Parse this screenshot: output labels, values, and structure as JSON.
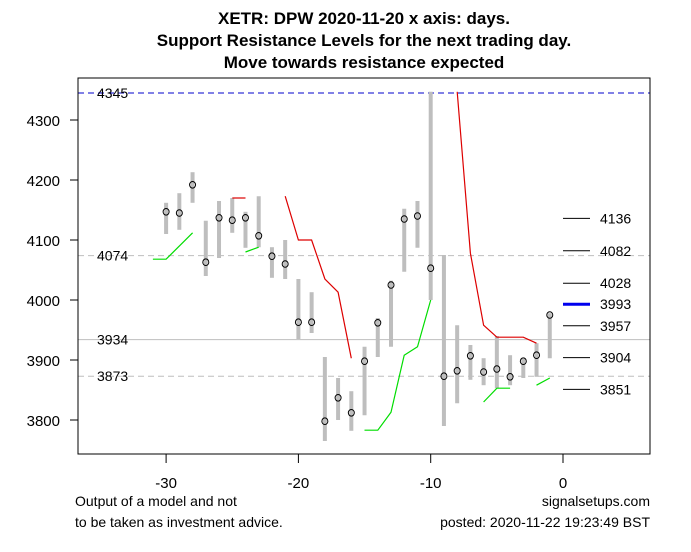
{
  "chart_data": {
    "type": "candlestick-range",
    "title_lines": [
      "XETR: DPW 2020-11-20 x axis: days.",
      "Support Resistance Levels for the next trading day.",
      "Move towards resistance expected"
    ],
    "xlabel": "",
    "ylabel": "",
    "xlim": [
      -36.5,
      6.5
    ],
    "ylim": [
      3745,
      4370
    ],
    "x_ticks": [
      -30,
      -20,
      -10,
      0
    ],
    "x_tick_labels": [
      "-30",
      "-20",
      "-10",
      "0"
    ],
    "y_ticks": [
      3800,
      3900,
      4000,
      4100,
      4200,
      4300
    ],
    "y_tick_labels": [
      "3800",
      "3900",
      "4000",
      "4100",
      "4200",
      "4300"
    ],
    "grid": false,
    "bars": [
      {
        "day": -30,
        "low": 4110,
        "high": 4162,
        "close": 4147
      },
      {
        "day": -29,
        "low": 4117,
        "high": 4178,
        "close": 4145
      },
      {
        "day": -28,
        "low": 4162,
        "high": 4213,
        "close": 4192
      },
      {
        "day": -27,
        "low": 4040,
        "high": 4132,
        "close": 4063
      },
      {
        "day": -26,
        "low": 4070,
        "high": 4165,
        "close": 4137
      },
      {
        "day": -25,
        "low": 4112,
        "high": 4170,
        "close": 4133
      },
      {
        "day": -24,
        "low": 4087,
        "high": 4147,
        "close": 4137
      },
      {
        "day": -23,
        "low": 4088,
        "high": 4173,
        "close": 4107
      },
      {
        "day": -22,
        "low": 4037,
        "high": 4088,
        "close": 4073
      },
      {
        "day": -21,
        "low": 4035,
        "high": 4100,
        "close": 4060
      },
      {
        "day": -20,
        "low": 3935,
        "high": 4035,
        "close": 3963
      },
      {
        "day": -19,
        "low": 3945,
        "high": 4013,
        "close": 3963
      },
      {
        "day": -18,
        "low": 3765,
        "high": 3905,
        "close": 3798
      },
      {
        "day": -17,
        "low": 3800,
        "high": 3870,
        "close": 3837
      },
      {
        "day": -16,
        "low": 3782,
        "high": 3848,
        "close": 3812
      },
      {
        "day": -15,
        "low": 3808,
        "high": 3922,
        "close": 3898
      },
      {
        "day": -14,
        "low": 3905,
        "high": 3970,
        "close": 3962
      },
      {
        "day": -13,
        "low": 3922,
        "high": 4032,
        "close": 4025
      },
      {
        "day": -12,
        "low": 4047,
        "high": 4152,
        "close": 4135
      },
      {
        "day": -11,
        "low": 4087,
        "high": 4165,
        "close": 4140
      },
      {
        "day": -10,
        "low": 4000,
        "high": 4347,
        "close": 4053
      },
      {
        "day": -9,
        "low": 3790,
        "high": 4075,
        "close": 3873
      },
      {
        "day": -8,
        "low": 3828,
        "high": 3958,
        "close": 3882
      },
      {
        "day": -7,
        "low": 3867,
        "high": 3925,
        "close": 3907
      },
      {
        "day": -6,
        "low": 3858,
        "high": 3903,
        "close": 3880
      },
      {
        "day": -5,
        "low": 3853,
        "high": 3940,
        "close": 3885
      },
      {
        "day": -4,
        "low": 3858,
        "high": 3908,
        "close": 3872
      },
      {
        "day": -3,
        "low": 3870,
        "high": 3902,
        "close": 3898
      },
      {
        "day": -2,
        "low": 3872,
        "high": 3928,
        "close": 3908
      },
      {
        "day": -1,
        "low": 3903,
        "high": 3978,
        "close": 3975
      }
    ],
    "resistance_segments": [
      [
        {
          "day": -25,
          "value": 4170
        },
        {
          "day": -24,
          "value": 4170
        }
      ],
      [
        {
          "day": -21,
          "value": 4173
        },
        {
          "day": -20,
          "value": 4100
        },
        {
          "day": -19,
          "value": 4100
        },
        {
          "day": -18,
          "value": 4035
        },
        {
          "day": -17,
          "value": 4013
        },
        {
          "day": -16,
          "value": 3903
        }
      ],
      [
        {
          "day": -8,
          "value": 4347
        },
        {
          "day": -7,
          "value": 4078
        },
        {
          "day": -6,
          "value": 3958
        },
        {
          "day": -5,
          "value": 3938
        },
        {
          "day": -4,
          "value": 3938
        },
        {
          "day": -3,
          "value": 3938
        },
        {
          "day": -2,
          "value": 3928
        }
      ]
    ],
    "support_segments": [
      [
        {
          "day": -31,
          "value": 4068
        },
        {
          "day": -30,
          "value": 4068
        },
        {
          "day": -28,
          "value": 4112
        }
      ],
      [
        {
          "day": -24,
          "value": 4080
        },
        {
          "day": -23,
          "value": 4088
        }
      ],
      [
        {
          "day": -15,
          "value": 3783
        },
        {
          "day": -14,
          "value": 3783
        },
        {
          "day": -13,
          "value": 3813
        },
        {
          "day": -12,
          "value": 3908
        },
        {
          "day": -11,
          "value": 3922
        },
        {
          "day": -10,
          "value": 4000
        }
      ],
      [
        {
          "day": -6,
          "value": 3830
        },
        {
          "day": -5,
          "value": 3853
        },
        {
          "day": -4,
          "value": 3853
        }
      ],
      [
        {
          "day": -2,
          "value": 3858
        },
        {
          "day": -1,
          "value": 3870
        }
      ]
    ],
    "horizontal_levels": [
      {
        "value": 4345,
        "label": "4345",
        "style": "dashed",
        "color": "#0000cc"
      },
      {
        "value": 4074,
        "label": "4074",
        "style": "dashed",
        "color": "#bebebe"
      },
      {
        "value": 3934,
        "label": "3934",
        "style": "solid",
        "color": "#bebebe"
      },
      {
        "value": 3873,
        "label": "3873",
        "style": "dashed",
        "color": "#bebebe"
      }
    ],
    "next_day_levels": [
      {
        "value": 4136,
        "label": "4136",
        "highlight": false
      },
      {
        "value": 4082,
        "label": "4082",
        "highlight": false
      },
      {
        "value": 4028,
        "label": "4028",
        "highlight": false
      },
      {
        "value": 3993,
        "label": "3993",
        "highlight": true
      },
      {
        "value": 3957,
        "label": "3957",
        "highlight": false
      },
      {
        "value": 3904,
        "label": "3904",
        "highlight": false
      },
      {
        "value": 3851,
        "label": "3851",
        "highlight": false
      }
    ],
    "colors": {
      "bar": "#bebebe",
      "resistance": "#dd0000",
      "support": "#00dd00",
      "highlight_level": "#0000ee",
      "level_marker": "#000000"
    }
  },
  "footer": {
    "left_line1": "Output of a model and not",
    "left_line2": "to be taken as investment advice.",
    "right_line1": "signalsetups.com",
    "right_line2": "posted: 2020-11-22 19:23:49 BST"
  }
}
